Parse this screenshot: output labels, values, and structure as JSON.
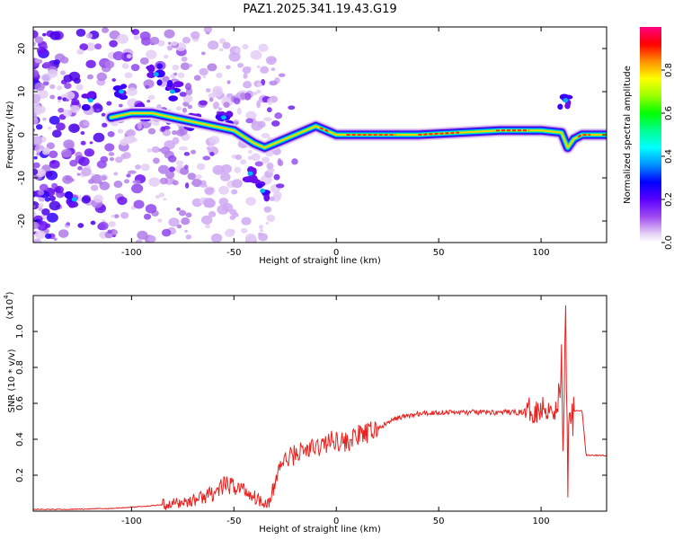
{
  "figure_title": "PAZ1.2025.341.19.43.G19",
  "chart_data": [
    {
      "type": "heatmap",
      "title": "PAZ1.2025.341.19.43.G19",
      "xlabel": "Height of straight line (km)",
      "ylabel": "Frequency (Hz)",
      "xlim": [
        -148,
        132
      ],
      "ylim": [
        -25,
        25
      ],
      "x_ticks": [
        -100,
        -50,
        0,
        50,
        100
      ],
      "y_ticks": [
        -20,
        -10,
        0,
        10,
        20
      ],
      "colorbar": {
        "label": "Normalized spectral amplitude",
        "range": [
          0,
          1
        ],
        "ticks": [
          0.0,
          0.2,
          0.4,
          0.6,
          0.8
        ],
        "tick_labels": [
          "0.0",
          "0.2",
          "0.4",
          "0.6",
          "0.8"
        ],
        "colors": [
          "#ffffff",
          "#d9b8f0",
          "#9a3ff0",
          "#5a00ff",
          "#0000ff",
          "#00a0ff",
          "#00ffff",
          "#00ff80",
          "#00ff00",
          "#a0ff00",
          "#ffff00",
          "#ff8000",
          "#ff0000",
          "#ff0080"
        ]
      },
      "ridge": {
        "x": [
          -110,
          -100,
          -90,
          -80,
          -70,
          -60,
          -50,
          -40,
          -35,
          -30,
          -20,
          -10,
          -5,
          0,
          10,
          20,
          40,
          60,
          80,
          100,
          110,
          113,
          116,
          120,
          132
        ],
        "y": [
          4,
          5,
          5,
          4,
          3,
          2,
          1,
          -2,
          -3,
          -2,
          0,
          2,
          1,
          0,
          0,
          0,
          0,
          0.5,
          1,
          1,
          0.5,
          -3,
          -1,
          0,
          0
        ]
      },
      "clusters": [
        {
          "x": -128,
          "y": -15
        },
        {
          "x": -120,
          "y": 8
        },
        {
          "x": -105,
          "y": 10
        },
        {
          "x": -95,
          "y": 6
        },
        {
          "x": -88,
          "y": 14
        },
        {
          "x": -80,
          "y": 10
        },
        {
          "x": -70,
          "y": 3
        },
        {
          "x": -55,
          "y": 4
        },
        {
          "x": -42,
          "y": -9
        },
        {
          "x": -36,
          "y": -13
        },
        {
          "x": 112,
          "y": 8
        }
      ]
    },
    {
      "type": "line",
      "xlabel": "Height of straight line (km)",
      "ylabel": "SNR (10 * v/v)",
      "y_scale_label": "(x10",
      "y_scale_exp": "4",
      "y_scale_close": ")",
      "xlim": [
        -148,
        132
      ],
      "ylim": [
        0,
        1.2
      ],
      "x_ticks": [
        -100,
        -50,
        0,
        50,
        100
      ],
      "y_ticks": [
        0.2,
        0.4,
        0.6,
        0.8,
        1.0
      ],
      "y_tick_labels": [
        "0.2",
        "0.4",
        "0.6",
        "0.8",
        "1.0"
      ],
      "series": [
        {
          "name": "SNR",
          "color": "#e8201e",
          "x": [
            -148,
            -130,
            -110,
            -90,
            -80,
            -70,
            -60,
            -55,
            -50,
            -45,
            -40,
            -35,
            -32,
            -30,
            -28,
            -25,
            -20,
            -15,
            -10,
            -5,
            0,
            5,
            10,
            15,
            20,
            30,
            40,
            50,
            60,
            70,
            80,
            90,
            95,
            100,
            105,
            108,
            110,
            111,
            112,
            113,
            114,
            116,
            120,
            122,
            132
          ],
          "y": [
            0.01,
            0.01,
            0.015,
            0.03,
            0.04,
            0.06,
            0.1,
            0.14,
            0.14,
            0.12,
            0.08,
            0.05,
            0.05,
            0.15,
            0.25,
            0.28,
            0.32,
            0.34,
            0.35,
            0.38,
            0.4,
            0.38,
            0.42,
            0.43,
            0.46,
            0.52,
            0.54,
            0.55,
            0.55,
            0.55,
            0.55,
            0.55,
            0.56,
            0.57,
            0.58,
            0.55,
            0.8,
            0.3,
            1.2,
            0.2,
            0.6,
            0.56,
            0.56,
            0.31,
            0.31
          ]
        }
      ]
    }
  ]
}
